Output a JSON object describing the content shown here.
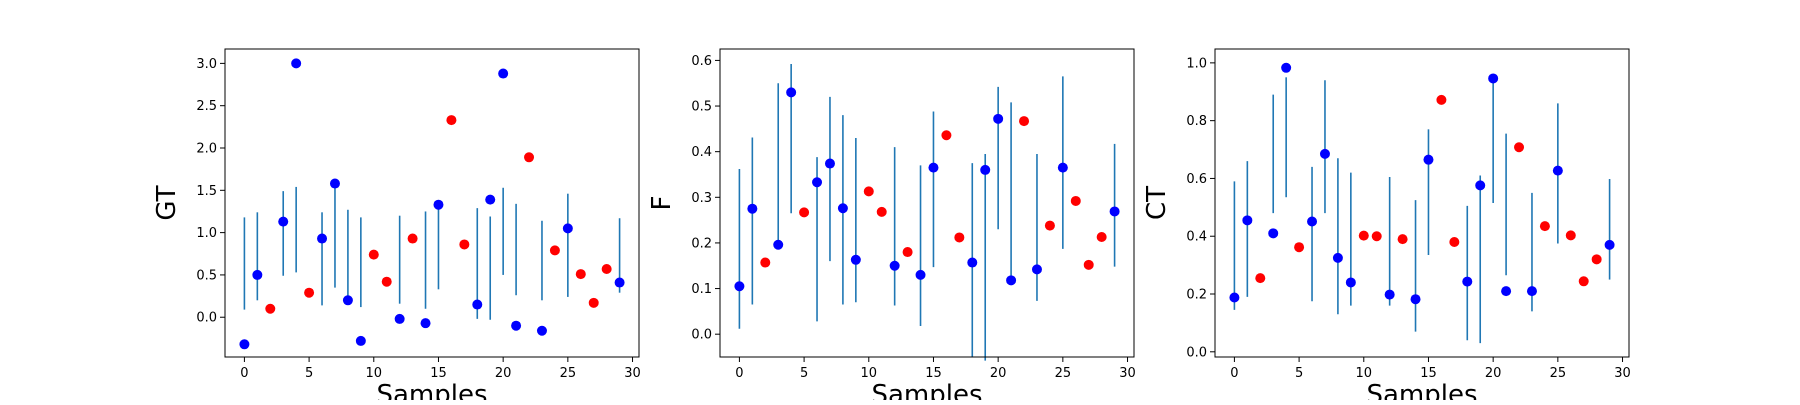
{
  "chart_data": [
    {
      "type": "scatter",
      "xlabel": "Samples",
      "ylabel": "GT",
      "xlim": [
        -1.5,
        30.5
      ],
      "ylim": [
        -0.47,
        3.17
      ],
      "xticks": [
        0,
        5,
        10,
        15,
        20,
        25,
        30
      ],
      "yticks": [
        0.0,
        0.5,
        1.0,
        1.5,
        2.0,
        2.5,
        3.0
      ],
      "ytick_labels": [
        "0.0",
        "0.5",
        "1.0",
        "1.5",
        "2.0",
        "2.5",
        "3.0"
      ],
      "grid": false,
      "colors": {
        "with_error": "#0000ff",
        "no_error": "#ff0000",
        "errorbar": "#1f77b4"
      },
      "x": [
        0,
        1,
        2,
        3,
        4,
        5,
        6,
        7,
        8,
        9,
        10,
        11,
        12,
        13,
        14,
        15,
        16,
        17,
        18,
        19,
        20,
        21,
        22,
        23,
        24,
        25,
        26,
        27,
        28,
        29
      ],
      "y": [
        -0.32,
        0.5,
        0.1,
        1.13,
        3.0,
        0.29,
        0.93,
        1.58,
        0.2,
        -0.28,
        0.74,
        0.42,
        -0.02,
        0.93,
        -0.07,
        1.33,
        2.33,
        0.86,
        0.15,
        1.39,
        2.88,
        -0.1,
        1.89,
        -0.16,
        0.79,
        1.05,
        0.51,
        0.17,
        0.57,
        0.41
      ],
      "err_low": [
        0.09,
        0.2,
        null,
        0.49,
        0.53,
        null,
        0.14,
        0.35,
        0.22,
        0.12,
        null,
        null,
        0.16,
        null,
        0.1,
        0.33,
        null,
        null,
        -0.02,
        -0.03,
        0.5,
        0.26,
        null,
        0.2,
        null,
        0.24,
        null,
        null,
        null,
        0.29
      ],
      "err_high": [
        1.18,
        1.24,
        null,
        1.49,
        1.54,
        null,
        1.24,
        1.6,
        1.27,
        1.18,
        null,
        null,
        1.2,
        null,
        1.25,
        1.35,
        null,
        null,
        1.29,
        1.19,
        1.53,
        1.34,
        null,
        1.14,
        null,
        1.46,
        null,
        null,
        null,
        1.17
      ]
    },
    {
      "type": "scatter",
      "xlabel": "Samples",
      "ylabel": "F",
      "xlim": [
        -1.5,
        30.5
      ],
      "ylim": [
        -0.05,
        0.625
      ],
      "xticks": [
        0,
        5,
        10,
        15,
        20,
        25,
        30
      ],
      "yticks": [
        0.0,
        0.1,
        0.2,
        0.3,
        0.4,
        0.5,
        0.6
      ],
      "ytick_labels": [
        "0.0",
        "0.1",
        "0.2",
        "0.3",
        "0.4",
        "0.5",
        "0.6"
      ],
      "grid": false,
      "colors": {
        "with_error": "#0000ff",
        "no_error": "#ff0000",
        "errorbar": "#1f77b4"
      },
      "x": [
        0,
        1,
        2,
        3,
        4,
        5,
        6,
        7,
        8,
        9,
        10,
        11,
        12,
        13,
        14,
        15,
        16,
        17,
        18,
        19,
        20,
        21,
        22,
        23,
        24,
        25,
        26,
        27,
        28,
        29
      ],
      "y": [
        0.105,
        0.275,
        0.157,
        0.196,
        0.53,
        0.267,
        0.333,
        0.374,
        0.276,
        0.163,
        0.313,
        0.268,
        0.15,
        0.18,
        0.13,
        0.365,
        0.436,
        0.212,
        0.157,
        0.36,
        0.472,
        0.118,
        0.467,
        0.142,
        0.238,
        0.365,
        0.292,
        0.152,
        0.213,
        0.269
      ],
      "err_low": [
        0.012,
        0.065,
        null,
        0.195,
        0.265,
        null,
        0.028,
        0.16,
        0.065,
        0.07,
        null,
        null,
        0.063,
        null,
        0.018,
        0.147,
        null,
        null,
        -0.05,
        -0.058,
        0.23,
        0.12,
        null,
        0.073,
        null,
        0.187,
        null,
        null,
        null,
        0.148
      ],
      "err_high": [
        0.362,
        0.431,
        null,
        0.55,
        0.592,
        null,
        0.388,
        0.52,
        0.48,
        0.43,
        null,
        null,
        0.41,
        null,
        0.37,
        0.488,
        null,
        null,
        0.375,
        0.395,
        0.542,
        0.508,
        null,
        0.395,
        null,
        0.565,
        null,
        null,
        null,
        0.417
      ]
    },
    {
      "type": "scatter",
      "xlabel": "Samples",
      "ylabel": "CT",
      "xlim": [
        -1.5,
        30.5
      ],
      "ylim": [
        -0.018,
        1.048
      ],
      "xticks": [
        0,
        5,
        10,
        15,
        20,
        25,
        30
      ],
      "yticks": [
        0.0,
        0.2,
        0.4,
        0.6,
        0.8,
        1.0
      ],
      "ytick_labels": [
        "0.0",
        "0.2",
        "0.4",
        "0.6",
        "0.8",
        "1.0"
      ],
      "grid": false,
      "colors": {
        "with_error": "#0000ff",
        "no_error": "#ff0000",
        "errorbar": "#1f77b4"
      },
      "x": [
        0,
        1,
        2,
        3,
        4,
        5,
        6,
        7,
        8,
        9,
        10,
        11,
        12,
        13,
        14,
        15,
        16,
        17,
        18,
        19,
        20,
        21,
        22,
        23,
        24,
        25,
        26,
        27,
        28,
        29
      ],
      "y": [
        0.188,
        0.455,
        0.255,
        0.41,
        0.983,
        0.362,
        0.451,
        0.685,
        0.325,
        0.24,
        0.402,
        0.4,
        0.198,
        0.39,
        0.182,
        0.665,
        0.872,
        0.38,
        0.243,
        0.576,
        0.946,
        0.21,
        0.708,
        0.21,
        0.435,
        0.627,
        0.403,
        0.244,
        0.32,
        0.37
      ],
      "err_low": [
        0.145,
        0.19,
        null,
        0.48,
        0.535,
        null,
        0.175,
        0.48,
        0.13,
        0.16,
        null,
        null,
        0.16,
        null,
        0.07,
        0.335,
        null,
        null,
        0.04,
        0.03,
        0.515,
        0.265,
        null,
        0.14,
        null,
        0.375,
        null,
        null,
        null,
        0.25
      ],
      "err_high": [
        0.59,
        0.66,
        null,
        0.89,
        0.95,
        null,
        0.64,
        0.94,
        0.67,
        0.62,
        null,
        null,
        0.605,
        null,
        0.525,
        0.77,
        null,
        null,
        0.505,
        0.61,
        0.95,
        0.755,
        null,
        0.55,
        null,
        0.86,
        null,
        null,
        null,
        0.598
      ]
    }
  ]
}
